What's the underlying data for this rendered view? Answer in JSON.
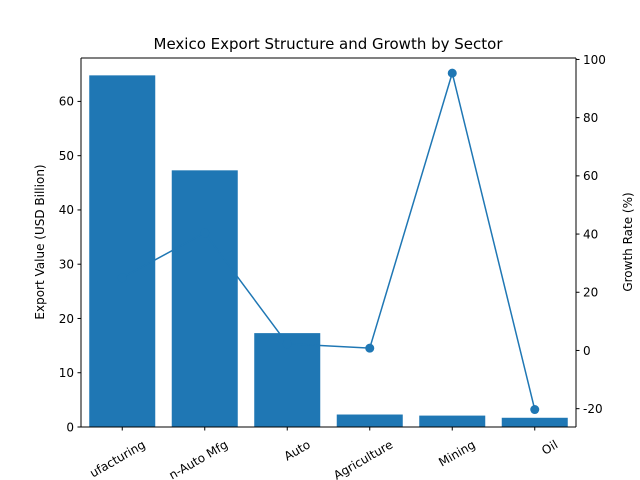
{
  "chart_data": {
    "type": "bar",
    "title": "Mexico Export Structure and Growth by Sector",
    "categories": [
      "Manufacturing",
      "Non-Auto Mfg",
      "Auto",
      "Agriculture",
      "Mining",
      "Oil"
    ],
    "category_labels_visible": [
      "ufacturing",
      "n-Auto Mfg",
      "Auto",
      "Agriculture",
      "Mining",
      "Oil"
    ],
    "xlabel": "",
    "ylabel": "Export Value (USD Billion)",
    "y2label": "Growth Rate (%)",
    "ylim": [
      0,
      68
    ],
    "y2lim": [
      -26.3,
      100.5
    ],
    "yticks": [
      0,
      10,
      20,
      30,
      40,
      50,
      60
    ],
    "y2ticks": [
      -20,
      0,
      20,
      40,
      60,
      80,
      100
    ],
    "xtick_rotation": -30,
    "grid": false,
    "series": [
      {
        "type": "bar",
        "axis": "left",
        "values": [
          64.8,
          47.3,
          17.3,
          2.3,
          2.1,
          1.7
        ],
        "color": "#1f77b4"
      },
      {
        "type": "line",
        "axis": "right",
        "values": [
          25.0,
          40.4,
          2.3,
          0.8,
          95.3,
          -20.3
        ],
        "color": "#1f77b4",
        "marker": "circle"
      }
    ]
  }
}
